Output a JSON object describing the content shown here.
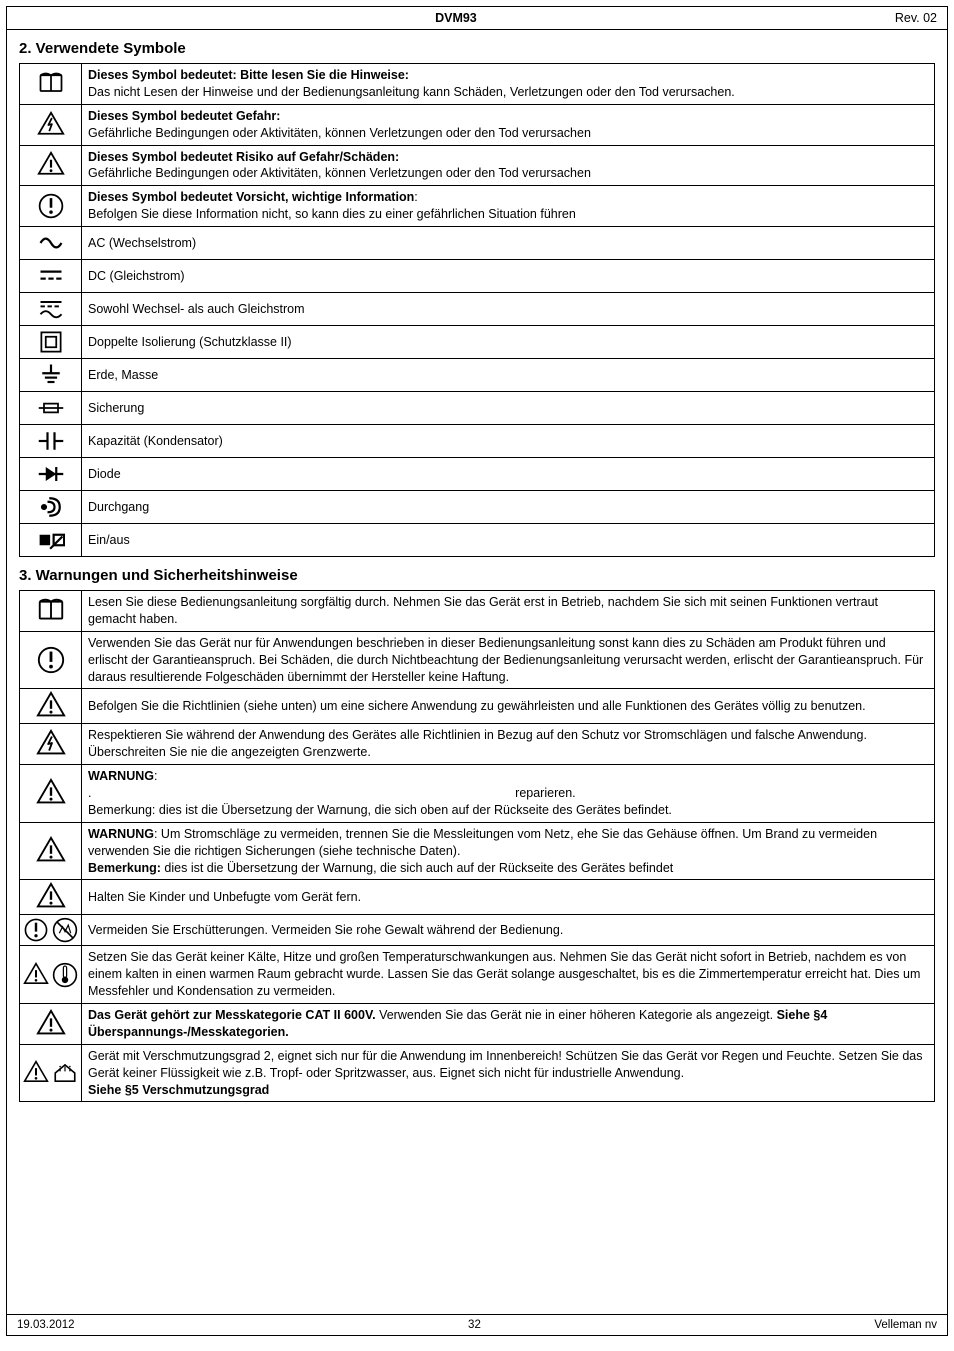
{
  "header": {
    "title": "DVM93",
    "rev": "Rev. 02"
  },
  "footer": {
    "date": "19.03.2012",
    "page": "32",
    "company": "Velleman nv"
  },
  "section2": {
    "heading": "2. Verwendete Symbole",
    "rows": [
      {
        "icon": "manual",
        "html": "<span class='b'>Dieses Symbol bedeutet: Bitte lesen Sie die Hinweise:</span><br>Das nicht Lesen der Hinweise und der Bedienungsanleitung kann Schäden, Verletzungen oder den Tod verursachen."
      },
      {
        "icon": "bolt-tri",
        "html": "<span class='b'>Dieses Symbol bedeutet Gefahr:</span><br>Gefährliche Bedingungen oder Aktivitäten, können Verletzungen oder den Tod verursachen"
      },
      {
        "icon": "excl-tri",
        "html": "<span class='b'>Dieses Symbol bedeutet Risiko auf Gefahr/Schäden:</span><br>Gefährliche Bedingungen oder Aktivitäten, können Verletzungen oder den Tod verursachen"
      },
      {
        "icon": "excl-circ",
        "html": "<span class='b'>Dieses Symbol bedeutet Vorsicht, wichtige Information</span>:<br>Befolgen Sie diese Information nicht, so kann dies zu einer gefährlichen Situation führen"
      },
      {
        "icon": "ac",
        "html": "AC (Wechselstrom)"
      },
      {
        "icon": "dc",
        "html": "DC (Gleichstrom)"
      },
      {
        "icon": "acdc",
        "html": "Sowohl Wechsel- als auch Gleichstrom"
      },
      {
        "icon": "double-ins",
        "html": "Doppelte Isolierung (Schutzklasse II)"
      },
      {
        "icon": "ground",
        "html": "Erde, Masse"
      },
      {
        "icon": "fuse",
        "html": "Sicherung"
      },
      {
        "icon": "cap",
        "html": "Kapazität (Kondensator)"
      },
      {
        "icon": "diode",
        "html": "Diode"
      },
      {
        "icon": "cont",
        "html": "Durchgang"
      },
      {
        "icon": "onoff",
        "html": "Ein/aus"
      }
    ]
  },
  "section3": {
    "heading": "3. Warnungen und Sicherheitshinweise",
    "rows": [
      {
        "icons": [
          "manual"
        ],
        "html": "Lesen Sie diese Bedienungsanleitung sorgfältig durch. Nehmen Sie das Gerät erst in Betrieb, nachdem Sie sich mit seinen Funktionen vertraut gemacht haben."
      },
      {
        "icons": [
          "excl-circ"
        ],
        "html": "Verwenden Sie das Gerät nur für Anwendungen beschrieben in dieser Bedienungsanleitung sonst kann dies zu Schäden am Produkt führen und erlischt der Garantieanspruch. Bei Schäden, die durch Nichtbeachtung der Bedienungsanleitung verursacht werden, erlischt der Garantieanspruch. Für daraus resultierende Folgeschäden übernimmt der Hersteller keine Haftung."
      },
      {
        "icons": [
          "excl-tri"
        ],
        "html": "Befolgen Sie die Richtlinien (siehe unten) um eine sichere Anwendung zu gewährleisten und alle Funktionen des Gerätes völlig zu benutzen."
      },
      {
        "icons": [
          "bolt-tri"
        ],
        "html": "Respektieren Sie während der Anwendung des Gerätes alle Richtlinien in Bezug auf den Schutz vor Stromschlägen und falsche Anwendung. Überschreiten Sie nie die angezeigten Grenzwerte."
      },
      {
        "icons": [
          "excl-tri"
        ],
        "html": "<span class='b'>WARNUNG</span>:<br>. &nbsp;&nbsp;&nbsp;&nbsp;&nbsp;&nbsp;&nbsp;&nbsp;&nbsp;&nbsp;&nbsp;&nbsp;&nbsp;&nbsp;&nbsp;&nbsp;&nbsp;&nbsp;&nbsp;&nbsp;&nbsp;&nbsp;&nbsp;&nbsp;&nbsp;&nbsp;&nbsp;&nbsp;&nbsp;&nbsp;&nbsp;&nbsp;&nbsp;&nbsp;&nbsp;&nbsp;&nbsp;&nbsp;&nbsp;&nbsp;&nbsp;&nbsp;&nbsp;&nbsp;&nbsp;&nbsp;&nbsp;&nbsp;&nbsp;&nbsp;&nbsp;&nbsp;&nbsp;&nbsp;&nbsp;&nbsp;&nbsp;&nbsp;&nbsp;&nbsp;&nbsp;&nbsp;&nbsp;&nbsp;&nbsp;&nbsp;&nbsp;&nbsp;&nbsp;&nbsp;&nbsp;&nbsp;&nbsp;&nbsp;&nbsp;&nbsp;&nbsp;&nbsp;&nbsp;&nbsp;&nbsp;&nbsp;&nbsp;&nbsp;&nbsp;&nbsp;&nbsp;&nbsp;&nbsp;&nbsp;&nbsp;&nbsp;&nbsp;&nbsp;&nbsp;&nbsp;&nbsp;&nbsp;&nbsp;&nbsp;&nbsp;&nbsp;&nbsp;&nbsp;&nbsp;&nbsp;&nbsp;&nbsp;&nbsp;&nbsp;&nbsp;&nbsp;&nbsp;&nbsp;&nbsp;&nbsp;&nbsp;&nbsp;&nbsp;&nbsp; reparieren.<br>Bemerkung: dies ist die Übersetzung der Warnung, die sich oben auf der Rückseite des Gerätes befindet."
      },
      {
        "icons": [
          "excl-tri"
        ],
        "html": "<span class='b'>WARNUNG</span>: Um Stromschläge zu vermeiden, trennen Sie die Messleitungen vom Netz, ehe Sie das Gehäuse öffnen. Um Brand zu vermeiden verwenden Sie die richtigen Sicherungen (siehe technische Daten).<br><span class='b'>Bemerkung:</span> dies ist die Übersetzung der Warnung, die sich auch auf der Rückseite des Gerätes befindet"
      },
      {
        "icons": [
          "excl-tri"
        ],
        "html": "Halten Sie Kinder und Unbefugte vom Gerät fern."
      },
      {
        "icons": [
          "excl-circ",
          "no-shake"
        ],
        "html": "Vermeiden Sie Erschütterungen. Vermeiden Sie rohe Gewalt während der Bedienung."
      },
      {
        "icons": [
          "excl-tri",
          "thermo"
        ],
        "html": "Setzen Sie das Gerät keiner Kälte, Hitze und großen Temperaturschwankungen aus. Nehmen Sie das Gerät nicht sofort in Betrieb, nachdem es von einem kalten in einen warmen Raum gebracht wurde. Lassen Sie das Gerät solange ausgeschaltet, bis es die Zimmertemperatur erreicht hat. Dies um Messfehler und Kondensation zu vermeiden."
      },
      {
        "icons": [
          "excl-tri"
        ],
        "html": "<span class='b'>Das Gerät gehört zur Messkategorie CAT II 600V.</span> Verwenden Sie das Gerät nie in einer höheren Kategorie als angezeigt. <span class='b'>Siehe §4 Überspannungs-/Messkategorien.</span>"
      },
      {
        "icons": [
          "excl-tri",
          "indoor"
        ],
        "html": "Gerät mit Verschmutzungsgrad 2, eignet sich nur für die Anwendung im Innenbereich! Schützen Sie das Gerät vor Regen und Feuchte. Setzen Sie das Gerät keiner Flüssigkeit wie z.B. Tropf- oder Spritzwasser, aus. Eignet sich nicht für industrielle Anwendung.<br><span class='b'>Siehe §5 Verschmutzungsgrad</span>"
      }
    ]
  }
}
